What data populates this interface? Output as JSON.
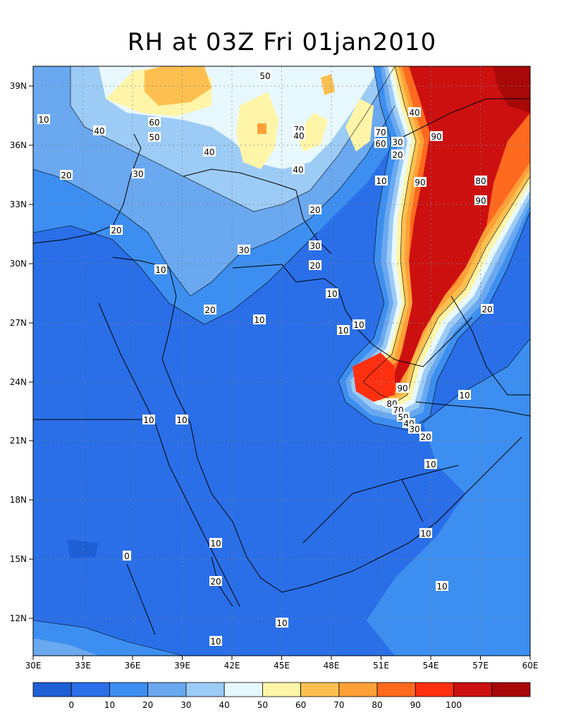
{
  "title": "RH at 03Z Fri 01jan2010",
  "lon_ticks": [
    "30E",
    "33E",
    "36E",
    "39E",
    "42E",
    "45E",
    "48E",
    "51E",
    "54E",
    "57E",
    "60E"
  ],
  "lat_ticks": [
    "39N",
    "36N",
    "33N",
    "30N",
    "27N",
    "24N",
    "21N",
    "18N",
    "15N",
    "12N"
  ],
  "colorbar": {
    "colors": [
      "#1e5fd6",
      "#2a6fe8",
      "#3c8ff0",
      "#6aa8f0",
      "#9ccbf5",
      "#e8f8ff",
      "#fff5a8",
      "#fdc050",
      "#fda038",
      "#ff6a1e",
      "#ff3010",
      "#cc1010",
      "#a80808"
    ],
    "labels": [
      "0",
      "10",
      "20",
      "30",
      "40",
      "50",
      "60",
      "70",
      "80",
      "90",
      "100"
    ]
  },
  "contour_labels": [
    "10",
    "40",
    "60",
    "50",
    "40",
    "50",
    "70",
    "40",
    "40",
    "60",
    "70",
    "30",
    "20",
    "90",
    "20",
    "30",
    "40",
    "20",
    "30",
    "20",
    "10",
    "90",
    "80",
    "90",
    "30",
    "10",
    "20",
    "10",
    "10",
    "10",
    "20",
    "10",
    "90",
    "80",
    "70",
    "50",
    "40",
    "30",
    "20",
    "10",
    "10",
    "10",
    "10",
    "0",
    "10",
    "20",
    "10",
    "10",
    "10",
    "10",
    "10"
  ],
  "colors": {
    "land_base": "#2a6fe8",
    "grid": "#808080",
    "border": "#000000"
  }
}
